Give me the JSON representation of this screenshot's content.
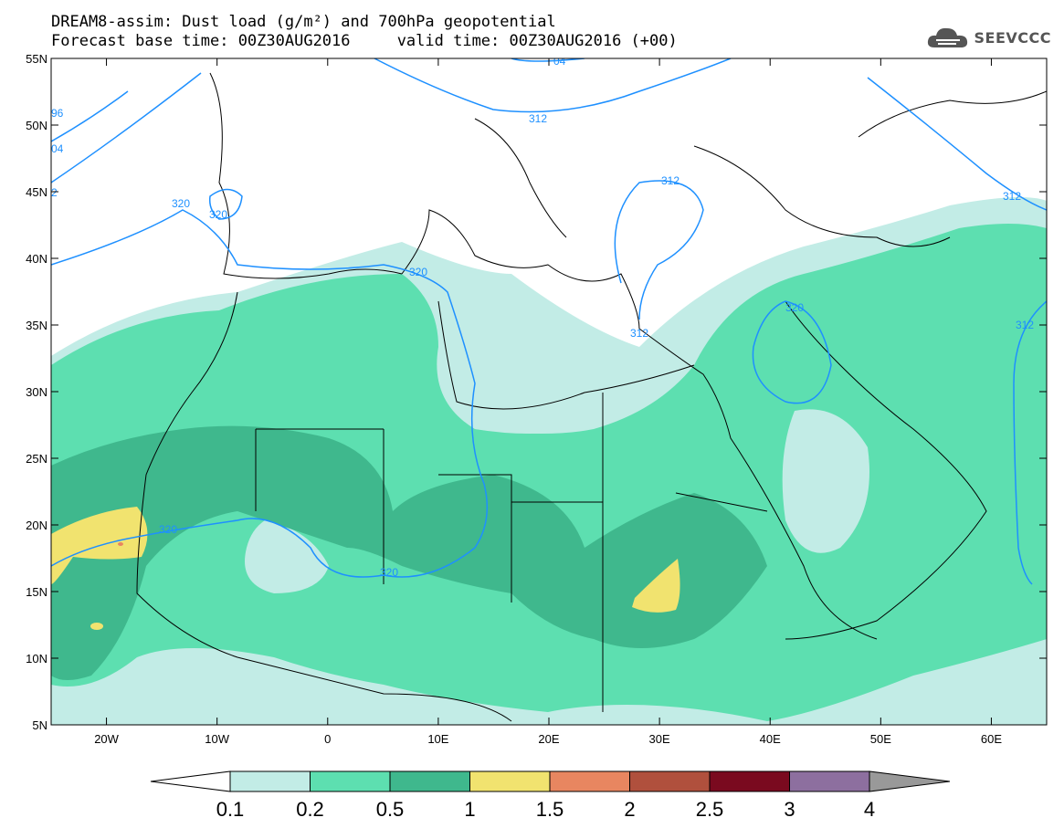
{
  "header": {
    "line1": "DREAM8-assim: Dust load (g/m²) and 700hPa geopotential",
    "line2": "Forecast base time: 00Z30AUG2016     valid time: 00Z30AUG2016 (+00)"
  },
  "logo": {
    "icon": "cloud-icon",
    "text": "SEEVCCC"
  },
  "map": {
    "lon_range": [
      -25,
      65
    ],
    "lat_range": [
      5,
      55
    ],
    "lat_ticks": [
      "55N",
      "50N",
      "45N",
      "40N",
      "35N",
      "30N",
      "25N",
      "20N",
      "15N",
      "10N",
      "5N"
    ],
    "lon_ticks": [
      "20W",
      "10W",
      "0",
      "10E",
      "20E",
      "30E",
      "40E",
      "50E",
      "60E"
    ],
    "contour_labels": [
      "320",
      "320",
      "320",
      "312",
      "320",
      "320",
      "312",
      "312",
      "312",
      "320",
      "312",
      "96",
      "04",
      "2",
      "04"
    ],
    "colors": {
      "contour": "#1e90ff",
      "coast": "#000000"
    }
  },
  "colorbar": {
    "labels": [
      "0.1",
      "0.2",
      "0.5",
      "1",
      "1.5",
      "2",
      "2.5",
      "3",
      "4"
    ],
    "colors": [
      "#c2ece6",
      "#5ddfb0",
      "#3fb88d",
      "#f1e36f",
      "#e88660",
      "#b0503d",
      "#7a0a1f",
      "#8d6f9f",
      "#999999"
    ]
  }
}
